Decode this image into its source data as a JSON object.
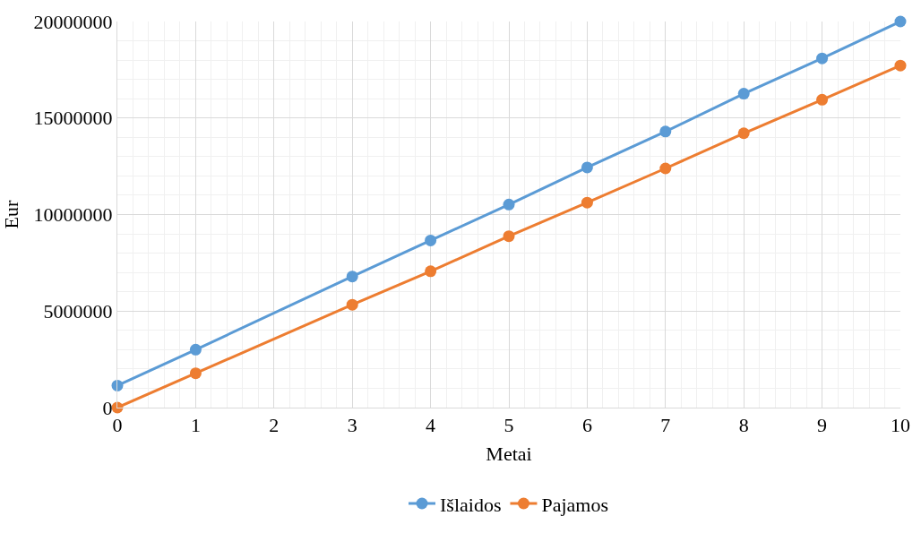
{
  "chart_data": {
    "type": "line",
    "xlabel": "Metai",
    "ylabel": "Eur",
    "xlim": [
      0,
      10
    ],
    "xticks": [
      0,
      1,
      2,
      3,
      4,
      5,
      6,
      7,
      8,
      9,
      10
    ],
    "ylim": [
      0,
      20000000
    ],
    "yticks": [
      0,
      5000000,
      10000000,
      15000000,
      20000000
    ],
    "series": [
      {
        "name": "Išlaidos",
        "color": "#5b9bd5",
        "x": [
          0,
          1,
          3,
          4,
          5,
          6,
          7,
          8,
          9,
          10
        ],
        "values": [
          1140000,
          3000000,
          6790000,
          8660000,
          10520000,
          12440000,
          14300000,
          16260000,
          18090000,
          20000000
        ]
      },
      {
        "name": "Pajamos",
        "color": "#ed7d31",
        "x": [
          0,
          1,
          3,
          4,
          5,
          6,
          7,
          8,
          9,
          10
        ],
        "values": [
          0,
          1780000,
          5330000,
          7060000,
          8880000,
          10620000,
          12390000,
          14210000,
          15950000,
          17720000
        ]
      }
    ],
    "grid": true,
    "legend": "bottom",
    "marker": "circle",
    "line_style": "solid"
  }
}
